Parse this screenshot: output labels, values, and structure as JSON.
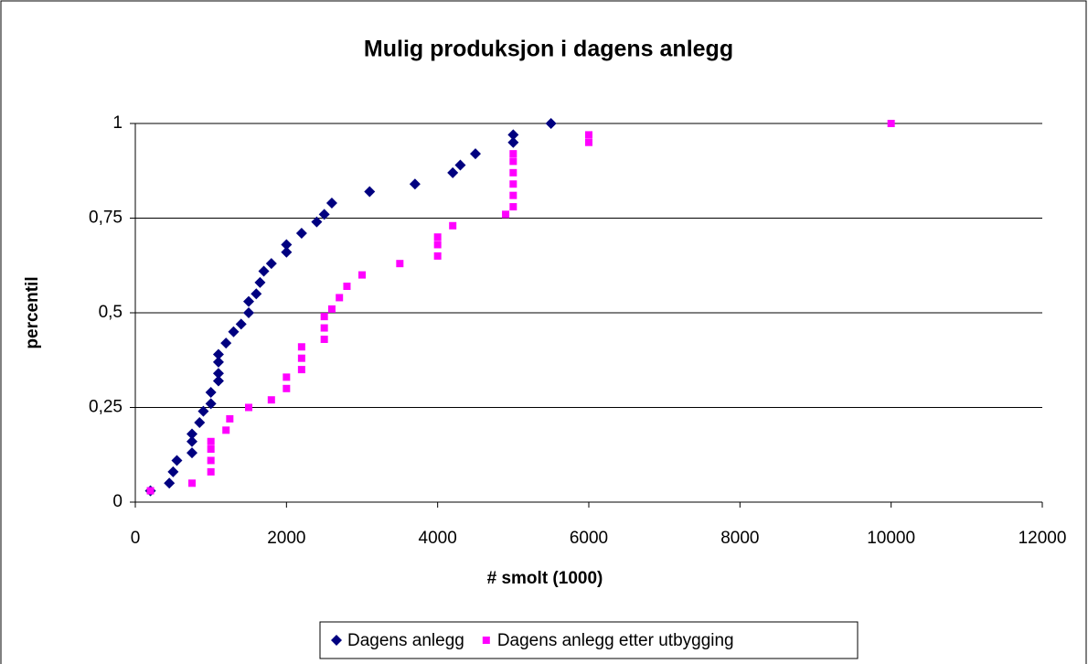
{
  "chart_data": {
    "type": "scatter",
    "title": "Mulig produksjon i dagens anlegg",
    "x_label": "# smolt (1000)",
    "y_label": "percentil",
    "xlim": [
      0,
      12000
    ],
    "xticks": [
      0,
      2000,
      4000,
      6000,
      8000,
      10000,
      12000
    ],
    "ylim": [
      0,
      1
    ],
    "yticks": [
      0,
      {
        "value": 0.25,
        "label": "0,25"
      },
      {
        "value": 0.5,
        "label": "0,5"
      },
      {
        "value": 0.75,
        "label": "0,75"
      },
      1
    ],
    "grid": true,
    "legend": "bottom",
    "series": [
      {
        "name": "Dagens anlegg",
        "color": "#000080",
        "marker": "diamond",
        "x": [
          200,
          450,
          500,
          550,
          750,
          750,
          750,
          850,
          900,
          1000,
          1000,
          1100,
          1100,
          1100,
          1100,
          1200,
          1300,
          1400,
          1500,
          1500,
          1600,
          1650,
          1700,
          1800,
          2000,
          2000,
          2200,
          2400,
          2500,
          2600,
          3100,
          3700,
          4200,
          4300,
          4500,
          5000,
          5000,
          5500
        ],
        "values": [
          0.03,
          0.05,
          0.08,
          0.11,
          0.13,
          0.16,
          0.18,
          0.21,
          0.24,
          0.26,
          0.29,
          0.32,
          0.34,
          0.37,
          0.39,
          0.42,
          0.45,
          0.47,
          0.5,
          0.53,
          0.55,
          0.58,
          0.61,
          0.63,
          0.66,
          0.68,
          0.71,
          0.74,
          0.76,
          0.79,
          0.82,
          0.84,
          0.87,
          0.89,
          0.92,
          0.95,
          0.97,
          1
        ]
      },
      {
        "name": "Dagens anlegg etter utbygging",
        "color": "#ff00ff",
        "marker": "square",
        "x": [
          200,
          750,
          1000,
          1000,
          1000,
          1000,
          1200,
          1250,
          1500,
          1800,
          2000,
          2000,
          2200,
          2200,
          2200,
          2500,
          2500,
          2500,
          2600,
          2700,
          2800,
          3000,
          3500,
          4000,
          4000,
          4000,
          4200,
          4900,
          5000,
          5000,
          5000,
          5000,
          5000,
          5000,
          6000,
          6000,
          10000
        ],
        "values": [
          0.03,
          0.05,
          0.08,
          0.11,
          0.14,
          0.16,
          0.19,
          0.22,
          0.25,
          0.27,
          0.3,
          0.33,
          0.35,
          0.38,
          0.41,
          0.43,
          0.46,
          0.49,
          0.51,
          0.54,
          0.57,
          0.6,
          0.63,
          0.65,
          0.68,
          0.7,
          0.73,
          0.76,
          0.78,
          0.81,
          0.84,
          0.87,
          0.9,
          0.92,
          0.95,
          0.97,
          1
        ]
      }
    ]
  }
}
